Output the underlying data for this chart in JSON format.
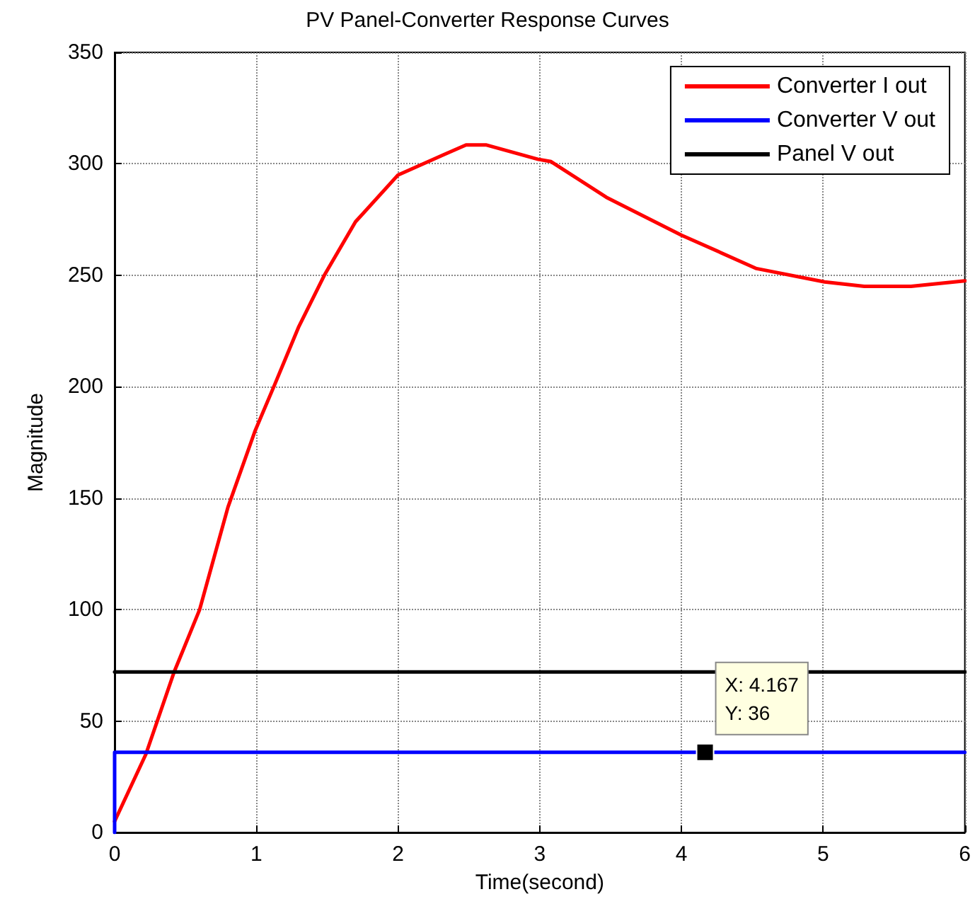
{
  "chart_data": {
    "type": "line",
    "title": "PV Panel-Converter Response Curves",
    "xlabel": "Time(second)",
    "ylabel": "Magnitude",
    "xlim": [
      0,
      6
    ],
    "xticks": [
      0,
      1,
      2,
      3,
      4,
      5,
      6
    ],
    "ylim": [
      0,
      350
    ],
    "yticks": [
      0,
      50,
      100,
      150,
      200,
      250,
      300,
      350
    ],
    "grid": true,
    "legend": "top right",
    "marker": "none",
    "line_style": "solid",
    "series": [
      {
        "name": "Converter I out",
        "color": "#ff0000",
        "x": [
          0,
          0.22,
          0.42,
          0.6,
          0.8,
          0.99,
          1.13,
          1.3,
          1.48,
          1.7,
          2.0,
          2.32,
          2.48,
          2.62,
          2.99,
          3.08,
          3.47,
          4.0,
          4.53,
          5.01,
          5.29,
          5.62,
          6.0
        ],
        "values": [
          5,
          35,
          72,
          100,
          146,
          180,
          201,
          227,
          250,
          274,
          295,
          304,
          308.5,
          308.5,
          302,
          301,
          285,
          268,
          253,
          247,
          245,
          245,
          247.5
        ]
      },
      {
        "name": "Converter V out",
        "color": "#0000ff",
        "x": [
          0,
          0,
          6
        ],
        "values": [
          0,
          36,
          36
        ]
      },
      {
        "name": "Panel V out",
        "color": "#000000",
        "x": [
          0,
          6
        ],
        "values": [
          72,
          72
        ]
      }
    ],
    "annotations": [
      {
        "text": "X: 4.167\nY: 36",
        "x": 4.167,
        "y": 36
      }
    ]
  }
}
